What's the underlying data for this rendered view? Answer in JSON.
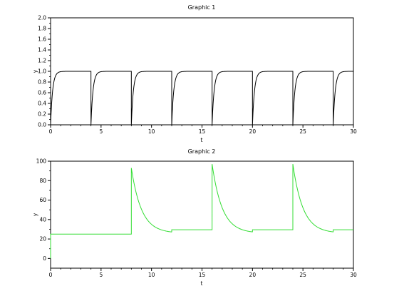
{
  "chart_data": [
    {
      "type": "line",
      "title": "Graphic 1",
      "xlabel": "t",
      "ylabel": "y",
      "xlim": [
        0,
        30
      ],
      "ylim": [
        0,
        2.0
      ],
      "xticks": [
        "0",
        "5",
        "10",
        "15",
        "20",
        "25",
        "30"
      ],
      "yticks": [
        "0.0",
        "0.2",
        "0.4",
        "0.6",
        "0.8",
        "1.0",
        "1.2",
        "1.4",
        "1.6",
        "1.8",
        "2.0"
      ],
      "grid": false,
      "line_color": "#000000",
      "series": [
        {
          "reset_times": [
            0,
            4,
            8,
            12,
            16,
            20,
            24,
            28
          ],
          "steady_value": 1.0,
          "reset_value": 0.0,
          "time_constant": 0.2
        }
      ]
    },
    {
      "type": "line",
      "title": "Graphic 2",
      "xlabel": "t",
      "ylabel": "y",
      "xlim": [
        0,
        30
      ],
      "ylim": [
        -10,
        100
      ],
      "xticks": [
        "0",
        "5",
        "10",
        "15",
        "20",
        "25",
        "30"
      ],
      "yticks": [
        "0",
        "20",
        "40",
        "60",
        "80",
        "100"
      ],
      "grid": false,
      "line_color": "#33dd33",
      "series": [
        {
          "points": [
            [
              0,
              0
            ],
            [
              0,
              25
            ],
            [
              8,
              25
            ],
            [
              8,
              93
            ],
            [
              12,
              27
            ],
            [
              12,
              29.5
            ],
            [
              16,
              29.5
            ],
            [
              16,
              97
            ],
            [
              20,
              27
            ],
            [
              20,
              29.5
            ],
            [
              24,
              29.5
            ],
            [
              24,
              97
            ],
            [
              28,
              27
            ],
            [
              28,
              29.5
            ],
            [
              30,
              29.5
            ]
          ],
          "decay_segments": [
            {
              "t0": 8,
              "t1": 12,
              "y_start": 93,
              "y_floor": 26
            },
            {
              "t0": 16,
              "t1": 20,
              "y_start": 97,
              "y_floor": 26
            },
            {
              "t0": 24,
              "t1": 28,
              "y_start": 97,
              "y_floor": 26
            }
          ]
        }
      ]
    }
  ]
}
